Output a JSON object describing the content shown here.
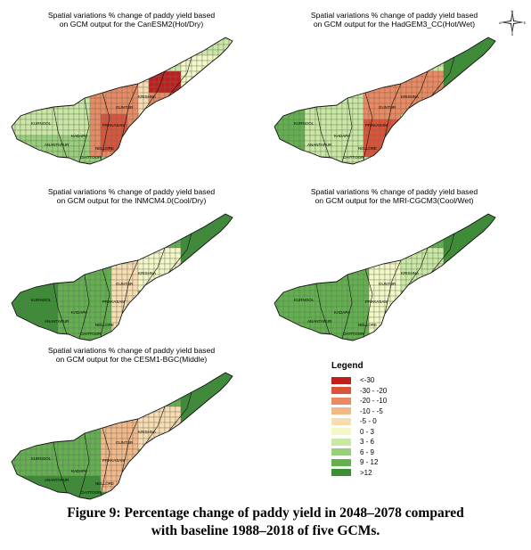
{
  "panels": [
    {
      "title": "Spatial variations % change of paddy yield  based\non GCM output for the CanESM2(Hot/Dry)"
    },
    {
      "title": "Spatial variations % change of paddy yield  based\non GCM output for the HadGEM3_CC(Hot/Wet)"
    },
    {
      "title": "Spatial variations % change of paddy yield  based\non GCM output for the INMCM4.0(Cool/Dry)"
    },
    {
      "title": "Spatial variations % change of paddy yield  based\non GCM output for the MRI-CGCM3(Cool/Wet)"
    },
    {
      "title": "Spatial variations % change of paddy yield  based\non GCM output for the CESM1-BGC(Middle)"
    }
  ],
  "legend": {
    "title": "Legend",
    "items": [
      {
        "label": "<-30",
        "color": "#c0201c"
      },
      {
        "label": "-30 - -20",
        "color": "#d9553a"
      },
      {
        "label": "-20 - -10",
        "color": "#e88a62"
      },
      {
        "label": "-10 - -5",
        "color": "#f2b888"
      },
      {
        "label": "-5 - 0",
        "color": "#f8ddb0"
      },
      {
        "label": "0 - 3",
        "color": "#f4f7c6"
      },
      {
        "label": "3 - 6",
        "color": "#c9e8a3"
      },
      {
        "label": "6 - 9",
        "color": "#98cf7a"
      },
      {
        "label": "9 - 12",
        "color": "#63b04f"
      },
      {
        "label": ">12",
        "color": "#3a8f33"
      }
    ]
  },
  "compass": {
    "n": "N",
    "e": "E",
    "s": "S",
    "w": "W"
  },
  "caption": "Figure 9: Percentage change of paddy yield in 2048–2078 compared\nwith baseline 1988–2018 of five GCMs.",
  "district_labels": [
    "KURNOOL",
    "ANANTAPUR",
    "KADAPA",
    "NELLORE",
    "GUNTUR",
    "PRAKASAM",
    "KRISHNA",
    "CHITTOOR"
  ]
}
